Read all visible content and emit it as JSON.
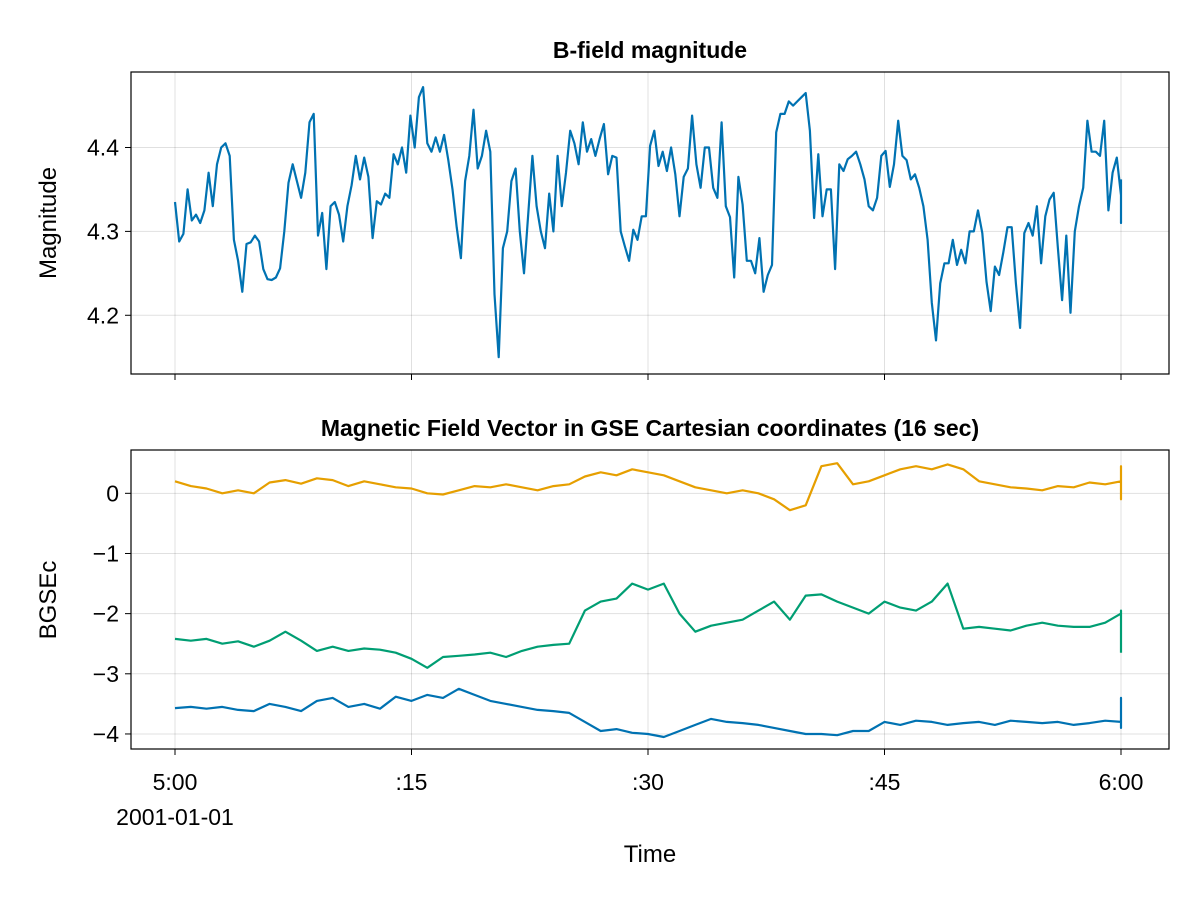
{
  "chart_data": [
    {
      "type": "line",
      "title": "B-field magnitude",
      "ylabel": "Magnitude",
      "xlim": [
        "2001-01-01T05:00",
        "2001-01-01T06:00"
      ],
      "ylim": [
        4.13,
        4.49
      ],
      "yticks": [
        4.2,
        4.3,
        4.4
      ],
      "ytick_labels": [
        "4.2",
        "4.3",
        "4.4"
      ],
      "show_xtick_labels": false,
      "grid": true,
      "series": [
        {
          "color": "#0072B2",
          "start_time": "2001-01-01T05:00",
          "interval_seconds": 16,
          "values": [
            4.335,
            4.288,
            4.297,
            4.35,
            4.313,
            4.32,
            4.31,
            4.325,
            4.37,
            4.33,
            4.38,
            4.4,
            4.405,
            4.39,
            4.29,
            4.265,
            4.228,
            4.285,
            4.287,
            4.295,
            4.288,
            4.255,
            4.243,
            4.242,
            4.245,
            4.256,
            4.3,
            4.358,
            4.38,
            4.36,
            4.34,
            4.37,
            4.43,
            4.44,
            4.295,
            4.322,
            4.255,
            4.33,
            4.335,
            4.32,
            4.288,
            4.33,
            4.355,
            4.39,
            4.362,
            4.388,
            4.365,
            4.292,
            4.336,
            4.332,
            4.345,
            4.34,
            4.392,
            4.38,
            4.4,
            4.37,
            4.438,
            4.4,
            4.46,
            4.472,
            4.405,
            4.395,
            4.412,
            4.395,
            4.415,
            4.385,
            4.35,
            4.305,
            4.268,
            4.36,
            4.39,
            4.445,
            4.375,
            4.39,
            4.42,
            4.395,
            4.225,
            4.15,
            4.28,
            4.3,
            4.36,
            4.375,
            4.3,
            4.25,
            4.32,
            4.39,
            4.33,
            4.3,
            4.28,
            4.345,
            4.3,
            4.39,
            4.33,
            4.37,
            4.42,
            4.405,
            4.38,
            4.43,
            4.395,
            4.41,
            4.39,
            4.41,
            4.428,
            4.368,
            4.39,
            4.388,
            4.3,
            4.282,
            4.265,
            4.302,
            4.29,
            4.318,
            4.318,
            4.402,
            4.42,
            4.378,
            4.395,
            4.372,
            4.4,
            4.368,
            4.318,
            4.365,
            4.375,
            4.438,
            4.38,
            4.352,
            4.4,
            4.4,
            4.352,
            4.34,
            4.43,
            4.33,
            4.317,
            4.245,
            4.365,
            4.332,
            4.265,
            4.265,
            4.25,
            4.292,
            4.228,
            4.248,
            4.26,
            4.418,
            4.44,
            4.44,
            4.455,
            4.45,
            4.455,
            4.46,
            4.465,
            4.42,
            4.316,
            4.392,
            4.318,
            4.35,
            4.35,
            4.255,
            4.38,
            4.372,
            4.386,
            4.39,
            4.395,
            4.38,
            4.362,
            4.33,
            4.325,
            4.34,
            4.39,
            4.396,
            4.353,
            4.38,
            4.432,
            4.39,
            4.385,
            4.362,
            4.368,
            4.352,
            4.33,
            4.29,
            4.215,
            4.17,
            4.238,
            4.262,
            4.262,
            4.29,
            4.26,
            4.278,
            4.262,
            4.3,
            4.3,
            4.325,
            4.298,
            4.24,
            4.205,
            4.258,
            4.248,
            4.275,
            4.305,
            4.305,
            4.238,
            4.185,
            4.298,
            4.31,
            4.295,
            4.33,
            4.262,
            4.318,
            4.338,
            4.346,
            4.28,
            4.218,
            4.295,
            4.203,
            4.3,
            4.33,
            4.352,
            4.432,
            4.395,
            4.395,
            4.39,
            4.432,
            4.325,
            4.37,
            4.388,
            4.343,
            4.31,
            4.362
          ]
        }
      ]
    },
    {
      "type": "line",
      "title": "Magnetic Field Vector in GSE Cartesian coordinates (16 sec)",
      "ylabel": "BGSEc",
      "xlabel": "Time",
      "xlim": [
        "2001-01-01T05:00",
        "2001-01-01T06:00"
      ],
      "ylim": [
        -4.25,
        0.72
      ],
      "yticks": [
        -4,
        -3,
        -2,
        -1,
        0
      ],
      "ytick_labels": [
        "−4",
        "−3",
        "−2",
        "−1",
        "0"
      ],
      "xticks": [
        "2001-01-01T05:00",
        "2001-01-01T05:15",
        "2001-01-01T05:30",
        "2001-01-01T05:45",
        "2001-01-01T06:00"
      ],
      "xtick_labels": [
        "5:00",
        ":15",
        ":30",
        ":45",
        "6:00"
      ],
      "xtick_sublabel": "2001-01-01",
      "grid": true,
      "series": [
        {
          "color": "#009E73",
          "start_time": "2001-01-01T05:00",
          "interval_seconds": 60,
          "values": [
            -2.42,
            -2.45,
            -2.42,
            -2.5,
            -2.46,
            -2.55,
            -2.45,
            -2.3,
            -2.45,
            -2.62,
            -2.55,
            -2.62,
            -2.58,
            -2.6,
            -2.65,
            -2.75,
            -2.9,
            -2.72,
            -2.7,
            -2.68,
            -2.65,
            -2.72,
            -2.62,
            -2.55,
            -2.52,
            -2.5,
            -1.95,
            -1.8,
            -1.75,
            -1.5,
            -1.6,
            -1.5,
            -2.0,
            -2.3,
            -2.2,
            -2.15,
            -2.1,
            -1.95,
            -1.8,
            -2.1,
            -1.7,
            -1.68,
            -1.8,
            -1.9,
            -2.0,
            -1.8,
            -1.9,
            -1.95,
            -1.8,
            -1.5,
            -2.25,
            -2.22,
            -2.25,
            -2.28,
            -2.2,
            -2.15,
            -2.2,
            -2.22,
            -2.22,
            -2.15,
            -2.0,
            -2.05,
            -1.98,
            -1.95,
            -2.15,
            -2.2,
            -2.38,
            -2.42,
            -2.48,
            -2.52,
            -2.4,
            -2.25,
            -2.3,
            -2.4,
            -2.5,
            -2.6,
            -2.05,
            -2.1,
            -2.05,
            -2.25,
            -2.6,
            -2.65
          ]
        },
        {
          "color": "#E69F00",
          "start_time": "2001-01-01T05:00",
          "interval_seconds": 60,
          "values": [
            0.2,
            0.12,
            0.08,
            0.0,
            0.05,
            0.0,
            0.18,
            0.22,
            0.16,
            0.25,
            0.22,
            0.12,
            0.2,
            0.15,
            0.1,
            0.08,
            0.0,
            -0.02,
            0.05,
            0.12,
            0.1,
            0.15,
            0.1,
            0.05,
            0.12,
            0.15,
            0.28,
            0.35,
            0.3,
            0.4,
            0.35,
            0.3,
            0.2,
            0.1,
            0.05,
            0.0,
            0.05,
            0.0,
            -0.1,
            -0.28,
            -0.2,
            0.45,
            0.5,
            0.15,
            0.2,
            0.3,
            0.4,
            0.45,
            0.4,
            0.48,
            0.4,
            0.2,
            0.15,
            0.1,
            0.08,
            0.05,
            0.12,
            0.1,
            0.18,
            0.15,
            0.2,
            0.25,
            0.3,
            0.4,
            0.45,
            0.42,
            0.3,
            0.2,
            0.1,
            0.0,
            -0.05,
            -0.1,
            -0.08,
            0.0,
            0.1,
            0.15,
            0.15,
            0.1,
            0.2,
            0.3,
            0.05,
            0.05
          ]
        },
        {
          "color": "#0072B2",
          "start_time": "2001-01-01T05:00",
          "interval_seconds": 60,
          "values": [
            -3.57,
            -3.55,
            -3.58,
            -3.55,
            -3.6,
            -3.62,
            -3.5,
            -3.55,
            -3.62,
            -3.45,
            -3.4,
            -3.55,
            -3.5,
            -3.58,
            -3.38,
            -3.45,
            -3.35,
            -3.4,
            -3.25,
            -3.35,
            -3.45,
            -3.5,
            -3.55,
            -3.6,
            -3.62,
            -3.65,
            -3.8,
            -3.95,
            -3.92,
            -3.98,
            -4.0,
            -4.05,
            -3.95,
            -3.85,
            -3.75,
            -3.8,
            -3.82,
            -3.85,
            -3.9,
            -3.95,
            -4.0,
            -4.0,
            -4.02,
            -3.95,
            -3.95,
            -3.8,
            -3.85,
            -3.78,
            -3.8,
            -3.85,
            -3.82,
            -3.8,
            -3.85,
            -3.78,
            -3.8,
            -3.82,
            -3.8,
            -3.85,
            -3.82,
            -3.78,
            -3.8,
            -3.75,
            -3.8,
            -3.7,
            -3.6,
            -3.55,
            -3.5,
            -3.55,
            -3.52,
            -3.48,
            -3.45,
            -3.42,
            -3.4,
            -3.45,
            -3.5,
            -3.55,
            -3.9,
            -3.88,
            -3.85,
            -3.8,
            -3.55,
            -3.45
          ]
        }
      ]
    }
  ]
}
